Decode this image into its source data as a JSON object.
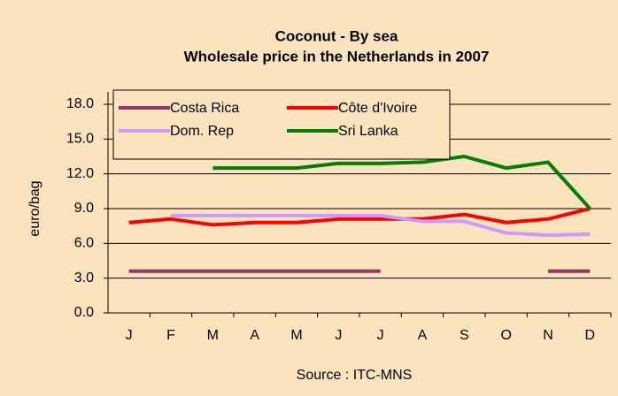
{
  "chart_data": {
    "type": "line",
    "title": "Coconut - By sea",
    "subtitle": "Wholesale price in the Netherlands in 2007",
    "y_label": "euro/bag",
    "x_label": "Source : ITC-MNS",
    "categories": [
      "J",
      "F",
      "M",
      "A",
      "M",
      "J",
      "J",
      "A",
      "S",
      "O",
      "N",
      "D"
    ],
    "series": [
      {
        "name": "Costa Rica",
        "color": "#993366",
        "values": [
          3.6,
          3.6,
          3.6,
          3.6,
          3.6,
          3.6,
          3.6,
          null,
          null,
          null,
          3.6,
          3.6
        ]
      },
      {
        "name": "Côte d'Ivoire",
        "color": "#ff0000",
        "values": [
          7.8,
          8.1,
          7.6,
          7.8,
          7.8,
          8.1,
          8.1,
          8.1,
          8.5,
          7.8,
          8.1,
          9.0
        ]
      },
      {
        "name": "Dom. Rep",
        "color": "#cc99ff",
        "values": [
          null,
          8.4,
          8.4,
          8.4,
          8.4,
          8.4,
          8.4,
          7.9,
          7.9,
          6.9,
          6.7,
          6.8
        ]
      },
      {
        "name": "Sri Lanka",
        "color": "#008000",
        "values": [
          null,
          null,
          12.5,
          12.5,
          12.5,
          12.9,
          12.9,
          13.0,
          13.5,
          12.5,
          13.0,
          9.0
        ]
      }
    ],
    "ylim": [
      0,
      18
    ],
    "yticks": [
      {
        "value": 0,
        "label": "0.0"
      },
      {
        "value": 3,
        "label": "3.0"
      },
      {
        "value": 6,
        "label": "6.0"
      },
      {
        "value": 9,
        "label": "9.0"
      },
      {
        "value": 12,
        "label": "12.0"
      },
      {
        "value": 15,
        "label": "15.0"
      },
      {
        "value": 18,
        "label": "18.0"
      }
    ],
    "grid": true,
    "legend": "top-left"
  }
}
